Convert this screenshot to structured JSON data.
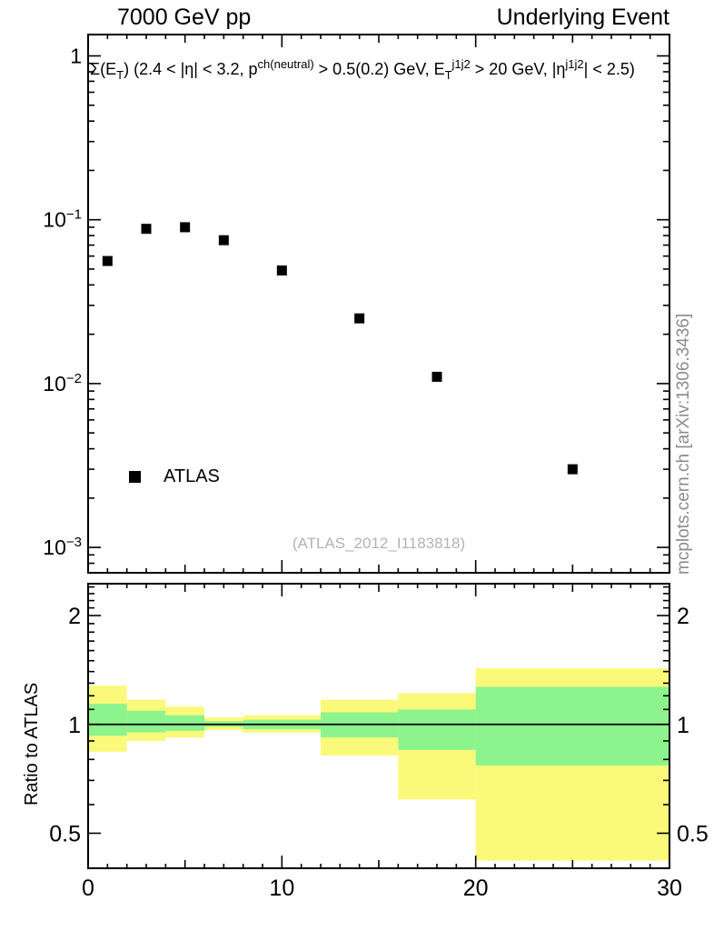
{
  "header": {
    "left_title": "7000 GeV pp",
    "right_title": "Underlying Event"
  },
  "watermark": "(ATLAS_2012_I1183818)",
  "side_label": "mcplots.cern.ch [arXiv:1306.3436]",
  "ratio_ylabel": "Ratio to ATLAS",
  "legend": {
    "label": "ATLAS",
    "marker": "filled-square"
  },
  "colors": {
    "band_outer": "#fbf97a",
    "band_inner": "#8df48d",
    "marker": "#000000",
    "watermark": "#b3b3b3",
    "side_text": "#8c8c8c"
  },
  "annotation_segments": [
    {
      "t": "Σ(E",
      "s": "n"
    },
    {
      "t": "T",
      "s": "sb"
    },
    {
      "t": ") (2.4 < |η| < 3.2, p",
      "s": "n"
    },
    {
      "t": "ch(neutral)",
      "s": "sp"
    },
    {
      "t": " > 0.5(0.2) GeV, E",
      "s": "n"
    },
    {
      "t": "T",
      "s": "sb"
    },
    {
      "t": "j1j2",
      "s": "sp"
    },
    {
      "t": " > 20 GeV, |η",
      "s": "n"
    },
    {
      "t": "j1j2",
      "s": "sp"
    },
    {
      "t": "| < 2.5)",
      "s": "n"
    }
  ],
  "chart_data": {
    "type": "scatter",
    "marker": "filled-square",
    "series_name": "ATLAS",
    "x": [
      1,
      3,
      5,
      7,
      10,
      14,
      18,
      25
    ],
    "y": [
      0.056,
      0.088,
      0.09,
      0.075,
      0.049,
      0.025,
      0.011,
      0.003
    ],
    "xlim": [
      0,
      30
    ],
    "ylim_main": [
      0.0007,
      1.35
    ],
    "xscale": "linear",
    "yscale": "log",
    "x_major_ticks": [
      0,
      10,
      20,
      30
    ],
    "y_major_ticks_main": [
      1,
      0.1,
      0.01,
      0.001
    ],
    "ratio": {
      "yscale": "log",
      "ylim": [
        0.4,
        2.45
      ],
      "yticks": [
        0.5,
        1,
        2
      ],
      "line": 1,
      "bands": [
        {
          "x0": 0,
          "x1": 2,
          "outer": [
            0.84,
            1.28
          ],
          "inner": [
            0.93,
            1.14
          ]
        },
        {
          "x0": 2,
          "x1": 4,
          "outer": [
            0.9,
            1.17
          ],
          "inner": [
            0.95,
            1.09
          ]
        },
        {
          "x0": 4,
          "x1": 6,
          "outer": [
            0.92,
            1.12
          ],
          "inner": [
            0.96,
            1.06
          ]
        },
        {
          "x0": 6,
          "x1": 8,
          "outer": [
            0.965,
            1.045
          ],
          "inner": [
            0.985,
            1.02
          ]
        },
        {
          "x0": 8,
          "x1": 12,
          "outer": [
            0.95,
            1.06
          ],
          "inner": [
            0.97,
            1.03
          ]
        },
        {
          "x0": 12,
          "x1": 16,
          "outer": [
            0.82,
            1.17
          ],
          "inner": [
            0.92,
            1.08
          ]
        },
        {
          "x0": 16,
          "x1": 20,
          "outer": [
            0.62,
            1.22
          ],
          "inner": [
            0.85,
            1.1
          ]
        },
        {
          "x0": 20,
          "x1": 30,
          "outer": [
            0.42,
            1.43
          ],
          "inner": [
            0.77,
            1.27
          ]
        }
      ]
    }
  }
}
